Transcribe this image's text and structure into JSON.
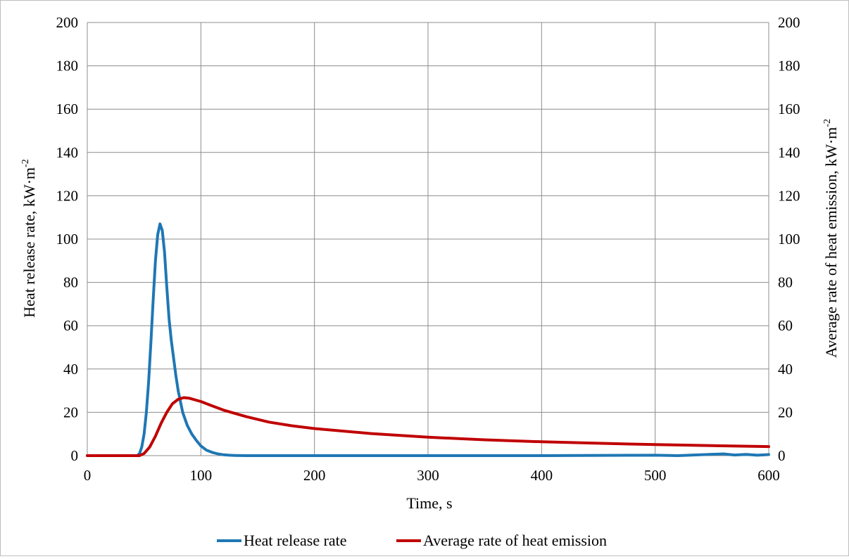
{
  "chart_data": {
    "type": "line",
    "title": "",
    "xlabel": "Time,  s",
    "ylabel_left": "Heat release rate,  kW·m",
    "ylabel_left_sup": "-2",
    "ylabel_right": "Average rate of heat emission,  kW·m",
    "ylabel_right_sup": "-2",
    "xlim": [
      0,
      600
    ],
    "ylim": [
      0,
      200
    ],
    "y2lim": [
      0,
      200
    ],
    "x_ticks": [
      0,
      100,
      200,
      300,
      400,
      500,
      600
    ],
    "y_ticks": [
      0,
      20,
      40,
      60,
      80,
      100,
      120,
      140,
      160,
      180,
      200
    ],
    "x_tick_labels": [
      "0",
      "100",
      "200",
      "300",
      "400",
      "500",
      "600"
    ],
    "y_tick_labels": [
      "0",
      "20",
      "40",
      "60",
      "80",
      "100",
      "120",
      "140",
      "160",
      "180",
      "200"
    ],
    "grid": true,
    "legend_position": "bottom",
    "series": [
      {
        "name": "Heat release rate",
        "color": "#1f77b4",
        "axis": "left",
        "x": [
          0,
          44,
          46,
          48,
          50,
          52,
          54,
          56,
          58,
          60,
          62,
          64,
          66,
          68,
          70,
          72,
          74,
          76,
          78,
          80,
          84,
          88,
          92,
          96,
          100,
          105,
          110,
          115,
          120,
          125,
          130,
          140,
          150,
          200,
          300,
          400,
          500,
          520,
          560,
          570,
          580,
          590,
          600
        ],
        "values": [
          0,
          0,
          1,
          4,
          10,
          20,
          34,
          52,
          72,
          90,
          102,
          107,
          104,
          94,
          78,
          63,
          53,
          45,
          37,
          30,
          20,
          14,
          10,
          7,
          4.5,
          2.5,
          1.5,
          0.8,
          0.4,
          0.2,
          0.1,
          0,
          0,
          0,
          0,
          0,
          0.2,
          0,
          0.8,
          0.3,
          0.6,
          0.2,
          0.5
        ]
      },
      {
        "name": "Average rate of heat emission",
        "color": "#c00000",
        "axis": "right",
        "x": [
          0,
          46,
          50,
          55,
          60,
          65,
          70,
          75,
          80,
          85,
          90,
          100,
          110,
          120,
          140,
          160,
          180,
          200,
          250,
          300,
          350,
          400,
          450,
          500,
          550,
          600
        ],
        "values": [
          0,
          0,
          1,
          4,
          9,
          15,
          20,
          24,
          26,
          26.8,
          26.5,
          25,
          23,
          21,
          18,
          15.5,
          13.8,
          12.5,
          10.2,
          8.5,
          7.3,
          6.4,
          5.7,
          5.1,
          4.6,
          4.2
        ]
      }
    ]
  }
}
